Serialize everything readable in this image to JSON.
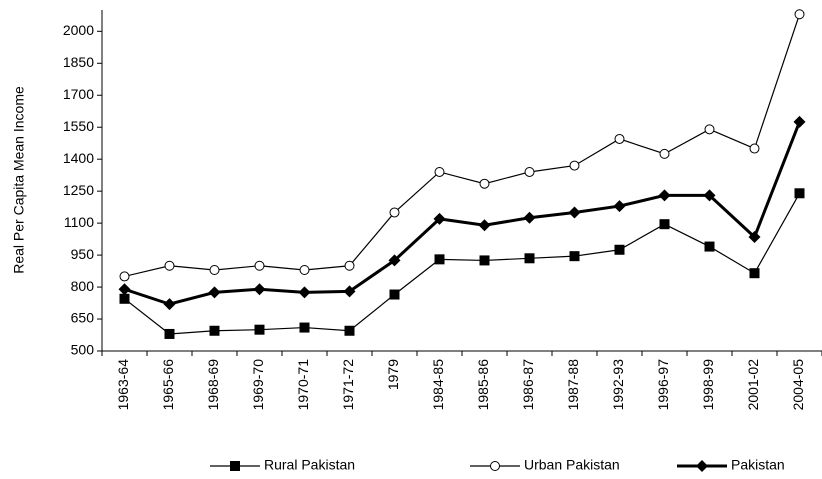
{
  "chart_data": {
    "type": "line",
    "y_label": "Real Per Capita Mean Income",
    "categories": [
      "1963-64",
      "1965-66",
      "1968-69",
      "1969-70",
      "1970-71",
      "1971-72",
      "1979",
      "1984-85",
      "1985-86",
      "1986-87",
      "1987-88",
      "1992-93",
      "1996-97",
      "1998-99",
      "2001-02",
      "2004-05"
    ],
    "series": [
      {
        "name": "Rural Pakistan",
        "color": "#000000",
        "marker": "square",
        "values": [
          745,
          580,
          595,
          600,
          610,
          595,
          765,
          930,
          925,
          935,
          945,
          975,
          1095,
          990,
          865,
          1240
        ]
      },
      {
        "name": "Urban Pakistan",
        "color": "#000000",
        "marker": "circle",
        "values": [
          850,
          900,
          880,
          900,
          880,
          900,
          1150,
          1340,
          1285,
          1340,
          1370,
          1495,
          1425,
          1540,
          1450,
          2080
        ]
      },
      {
        "name": "Pakistan",
        "color": "#000000",
        "marker": "diamond",
        "values": [
          790,
          720,
          775,
          790,
          775,
          780,
          925,
          1120,
          1090,
          1125,
          1150,
          1180,
          1230,
          1230,
          1035,
          1575
        ]
      }
    ],
    "ylim": [
      500,
      2100
    ],
    "yticks": [
      500,
      650,
      800,
      950,
      1100,
      1250,
      1400,
      1550,
      1700,
      1850,
      2000
    ],
    "legend": "bottom"
  }
}
